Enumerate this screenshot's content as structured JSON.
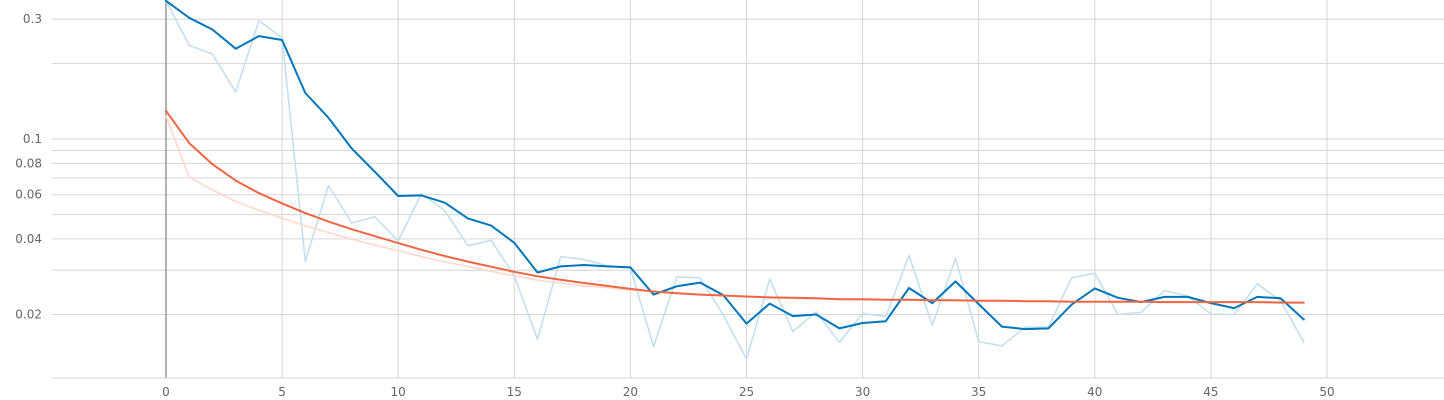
{
  "chart_data": {
    "type": "line",
    "title": "",
    "xlabel": "",
    "ylabel": "",
    "y_scale": "log",
    "xlim": [
      -5,
      55
    ],
    "ylim": [
      0.0135,
      0.35
    ],
    "grid": true,
    "x_ticks": [
      0,
      5,
      10,
      15,
      20,
      25,
      30,
      35,
      40,
      45,
      50
    ],
    "x_tick_labels": [
      "0",
      "5",
      "10",
      "15",
      "20",
      "25",
      "30",
      "35",
      "40",
      "45",
      "50"
    ],
    "y_ticks": [
      0.02,
      0.04,
      0.06,
      0.08,
      0.1,
      0.3
    ],
    "y_tick_labels": [
      "0.02",
      "0.04",
      "0.06",
      "0.08",
      "0.1",
      "0.3"
    ],
    "y_minor_grid": [
      0.03,
      0.05,
      0.07,
      0.09,
      0.2
    ],
    "series": [
      {
        "role": "raw",
        "color": "#c6dfee",
        "x": [
          0,
          1,
          2,
          3,
          4,
          5,
          6,
          7,
          8,
          9,
          10,
          11,
          12,
          13,
          14,
          15,
          16,
          17,
          18,
          19,
          20,
          21,
          22,
          23,
          24,
          25,
          26,
          27,
          28,
          29,
          30,
          31,
          32,
          33,
          34,
          35,
          36,
          37,
          38,
          39,
          40,
          41,
          42,
          43,
          44,
          45,
          46,
          47,
          48,
          49
        ],
        "values": [
          0.355,
          0.236,
          0.218,
          0.154,
          0.296,
          0.253,
          0.0326,
          0.0653,
          0.0463,
          0.049,
          0.0392,
          0.0606,
          0.0519,
          0.0376,
          0.0395,
          0.0285,
          0.0159,
          0.034,
          0.0331,
          0.0313,
          0.0306,
          0.0149,
          0.0282,
          0.028,
          0.0199,
          0.0133,
          0.0277,
          0.0171,
          0.0205,
          0.0155,
          0.0202,
          0.0196,
          0.0344,
          0.0181,
          0.0335,
          0.0156,
          0.015,
          0.0178,
          0.0178,
          0.028,
          0.0292,
          0.02,
          0.0204,
          0.0249,
          0.0237,
          0.0201,
          0.02,
          0.0265,
          0.0227,
          0.0155
        ]
      },
      {
        "role": "raw",
        "color": "#fcd9cc",
        "x": [
          0,
          1,
          2,
          3,
          4,
          5,
          6,
          7,
          8,
          9,
          10,
          11,
          12,
          13,
          14,
          15,
          16,
          17,
          18,
          19,
          20,
          21,
          22,
          23,
          24,
          25,
          26,
          27,
          28,
          29,
          30,
          31,
          32,
          33,
          34,
          35,
          36,
          37,
          38,
          39,
          40,
          41,
          42,
          43,
          44,
          45,
          46,
          47,
          48,
          49
        ],
        "values": [
          0.123,
          0.0705,
          0.0627,
          0.0563,
          0.0521,
          0.0484,
          0.0451,
          0.0424,
          0.0399,
          0.0378,
          0.0359,
          0.034,
          0.0324,
          0.0311,
          0.0297,
          0.0285,
          0.0274,
          0.0267,
          0.026,
          0.0256,
          0.025,
          0.0247,
          0.0244,
          0.024,
          0.0238,
          0.0236,
          0.0233,
          0.0232,
          0.0231,
          0.023,
          0.0229,
          0.0229,
          0.0228,
          0.0228,
          0.0227,
          0.0227,
          0.0227,
          0.0226,
          0.0226,
          0.0225,
          0.0225,
          0.0225,
          0.0225,
          0.0225,
          0.0224,
          0.0224,
          0.0224,
          0.0224,
          0.0224,
          0.0223
        ]
      },
      {
        "role": "smoothed",
        "color": "#0077bb",
        "x": [
          0,
          1,
          2,
          3,
          4,
          5,
          6,
          7,
          8,
          9,
          10,
          11,
          12,
          13,
          14,
          15,
          16,
          17,
          18,
          19,
          20,
          21,
          22,
          23,
          24,
          25,
          26,
          27,
          28,
          29,
          30,
          31,
          32,
          33,
          34,
          35,
          36,
          37,
          38,
          39,
          40,
          41,
          42,
          43,
          44,
          45,
          46,
          47,
          48,
          49
        ],
        "values": [
          0.355,
          0.304,
          0.273,
          0.229,
          0.257,
          0.248,
          0.1525,
          0.1215,
          0.0916,
          0.0739,
          0.0593,
          0.0596,
          0.0558,
          0.0483,
          0.0452,
          0.0386,
          0.0294,
          0.0311,
          0.0315,
          0.0311,
          0.0308,
          0.024,
          0.0259,
          0.0268,
          0.0239,
          0.0184,
          0.0221,
          0.0197,
          0.02,
          0.0176,
          0.0185,
          0.0188,
          0.0255,
          0.0222,
          0.0271,
          0.022,
          0.0179,
          0.0175,
          0.0176,
          0.0219,
          0.0254,
          0.0233,
          0.0224,
          0.0235,
          0.0235,
          0.0222,
          0.0212,
          0.0235,
          0.0232,
          0.0191
        ]
      },
      {
        "role": "smoothed",
        "color": "#ee6644",
        "x": [
          0,
          1,
          2,
          3,
          4,
          5,
          6,
          7,
          8,
          9,
          10,
          11,
          12,
          13,
          14,
          15,
          16,
          17,
          18,
          19,
          20,
          21,
          22,
          23,
          24,
          25,
          26,
          27,
          28,
          29,
          30,
          31,
          32,
          33,
          34,
          35,
          36,
          37,
          38,
          39,
          40,
          41,
          42,
          43,
          44,
          45,
          46,
          47,
          48,
          49
        ],
        "values": [
          0.1295,
          0.0963,
          0.0794,
          0.0683,
          0.0609,
          0.0554,
          0.0507,
          0.0469,
          0.0437,
          0.041,
          0.0385,
          0.0362,
          0.0342,
          0.0325,
          0.031,
          0.0296,
          0.0284,
          0.0275,
          0.0267,
          0.026,
          0.0253,
          0.0247,
          0.0243,
          0.024,
          0.0238,
          0.0236,
          0.0234,
          0.0233,
          0.0232,
          0.023,
          0.023,
          0.0229,
          0.0229,
          0.0228,
          0.0228,
          0.0227,
          0.0227,
          0.0226,
          0.0226,
          0.0225,
          0.0225,
          0.0225,
          0.0225,
          0.0224,
          0.0224,
          0.0224,
          0.0224,
          0.0224,
          0.0223,
          0.0223
        ]
      }
    ]
  }
}
